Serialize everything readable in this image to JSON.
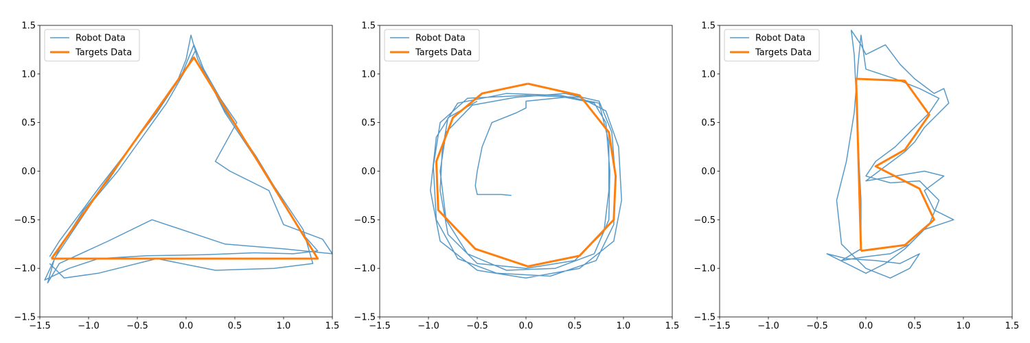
{
  "colors": {
    "robot": "#1f77b4",
    "targets": "#ff7f0e"
  },
  "chart_data": [
    {
      "type": "line",
      "title": "",
      "xlabel": "",
      "ylabel": "",
      "xlim": [
        -1.5,
        1.5
      ],
      "ylim": [
        -1.5,
        1.5
      ],
      "xticks": [
        "−1.5",
        "−1.0",
        "−0.5",
        "0.0",
        "0.5",
        "1.0",
        "1.5"
      ],
      "yticks": [
        "−1.5",
        "−1.0",
        "−0.5",
        "0.0",
        "0.5",
        "1.0",
        "1.5"
      ],
      "grid": false,
      "legend_placement": "top-left",
      "series": [
        {
          "name": "Robot Data",
          "color": "#1f77b4",
          "points": [
            [
              -1.4,
              -0.88
            ],
            [
              -1.3,
              -0.72
            ],
            [
              -1.1,
              -0.45
            ],
            [
              -0.9,
              -0.18
            ],
            [
              -0.7,
              0.08
            ],
            [
              -0.5,
              0.34
            ],
            [
              -0.3,
              0.62
            ],
            [
              -0.1,
              0.9
            ],
            [
              0.0,
              1.15
            ],
            [
              0.05,
              1.4
            ],
            [
              0.12,
              1.15
            ],
            [
              0.22,
              0.95
            ],
            [
              0.38,
              0.65
            ],
            [
              0.55,
              0.4
            ],
            [
              0.72,
              0.15
            ],
            [
              0.9,
              -0.15
            ],
            [
              1.05,
              -0.42
            ],
            [
              1.2,
              -0.65
            ],
            [
              1.35,
              -0.82
            ],
            [
              1.1,
              -0.85
            ],
            [
              0.7,
              -0.84
            ],
            [
              0.2,
              -0.86
            ],
            [
              -0.4,
              -0.87
            ],
            [
              -0.9,
              -0.9
            ],
            [
              -1.2,
              -1.0
            ],
            [
              -1.45,
              -1.12
            ],
            [
              -1.3,
              -0.8
            ],
            [
              -1.05,
              -0.4
            ],
            [
              -0.8,
              -0.1
            ],
            [
              -0.55,
              0.28
            ],
            [
              -0.3,
              0.6
            ],
            [
              -0.05,
              0.98
            ],
            [
              0.08,
              1.3
            ],
            [
              0.18,
              1.05
            ],
            [
              0.35,
              0.75
            ],
            [
              0.52,
              0.5
            ],
            [
              0.3,
              0.1
            ],
            [
              0.45,
              0.0
            ],
            [
              0.85,
              -0.2
            ],
            [
              1.0,
              -0.55
            ],
            [
              1.4,
              -0.7
            ],
            [
              1.5,
              -0.85
            ],
            [
              1.0,
              -0.8
            ],
            [
              0.4,
              -0.75
            ],
            [
              -0.35,
              -0.5
            ],
            [
              -0.8,
              -0.72
            ],
            [
              -1.3,
              -0.95
            ],
            [
              -1.42,
              -1.15
            ],
            [
              -1.35,
              -0.9
            ],
            [
              -1.15,
              -0.6
            ],
            [
              -0.95,
              -0.3
            ],
            [
              -0.7,
              0.0
            ],
            [
              -0.45,
              0.35
            ],
            [
              -0.2,
              0.7
            ],
            [
              0.0,
              1.05
            ],
            [
              0.1,
              1.25
            ],
            [
              0.2,
              1.0
            ],
            [
              0.4,
              0.6
            ],
            [
              0.6,
              0.3
            ],
            [
              0.8,
              0.0
            ],
            [
              1.0,
              -0.3
            ],
            [
              1.2,
              -0.6
            ],
            [
              1.3,
              -0.95
            ],
            [
              0.9,
              -1.0
            ],
            [
              0.3,
              -1.02
            ],
            [
              -0.3,
              -0.9
            ],
            [
              -0.9,
              -1.05
            ],
            [
              -1.25,
              -1.1
            ],
            [
              -1.4,
              -0.95
            ]
          ]
        },
        {
          "name": "Targets Data",
          "color": "#ff7f0e",
          "points": [
            [
              -1.38,
              -0.9
            ],
            [
              0.08,
              1.17
            ],
            [
              1.35,
              -0.9
            ],
            [
              -1.38,
              -0.9
            ]
          ]
        }
      ]
    },
    {
      "type": "line",
      "title": "",
      "xlabel": "",
      "ylabel": "",
      "xlim": [
        -1.5,
        1.5
      ],
      "ylim": [
        -1.5,
        1.5
      ],
      "xticks": [
        "−1.5",
        "−1.0",
        "−0.5",
        "0.0",
        "0.5",
        "1.0",
        "1.5"
      ],
      "yticks": [
        "−1.5",
        "−1.0",
        "−0.5",
        "0.0",
        "0.5",
        "1.0",
        "1.5"
      ],
      "grid": false,
      "legend_placement": "top-left",
      "series": [
        {
          "name": "Robot Data",
          "color": "#1f77b4",
          "points": [
            [
              -0.15,
              -0.25
            ],
            [
              -0.25,
              -0.24
            ],
            [
              -0.42,
              -0.24
            ],
            [
              -0.5,
              -0.24
            ],
            [
              -0.52,
              -0.15
            ],
            [
              -0.5,
              0.0
            ],
            [
              -0.45,
              0.25
            ],
            [
              -0.35,
              0.5
            ],
            [
              -0.1,
              0.6
            ],
            [
              0.0,
              0.65
            ],
            [
              0.0,
              0.72
            ],
            [
              0.4,
              0.76
            ],
            [
              0.7,
              0.7
            ],
            [
              0.82,
              0.5
            ],
            [
              0.86,
              0.0
            ],
            [
              0.85,
              -0.5
            ],
            [
              0.7,
              -0.85
            ],
            [
              0.3,
              -1.0
            ],
            [
              -0.2,
              -1.02
            ],
            [
              -0.6,
              -0.85
            ],
            [
              -0.82,
              -0.5
            ],
            [
              -0.88,
              0.0
            ],
            [
              -0.82,
              0.4
            ],
            [
              -0.55,
              0.68
            ],
            [
              -0.1,
              0.76
            ],
            [
              0.4,
              0.8
            ],
            [
              0.75,
              0.72
            ],
            [
              0.88,
              0.4
            ],
            [
              0.92,
              -0.1
            ],
            [
              0.9,
              -0.55
            ],
            [
              0.72,
              -0.92
            ],
            [
              0.25,
              -1.08
            ],
            [
              -0.3,
              -1.05
            ],
            [
              -0.7,
              -0.9
            ],
            [
              -0.92,
              -0.5
            ],
            [
              -0.95,
              0.05
            ],
            [
              -0.88,
              0.5
            ],
            [
              -0.6,
              0.75
            ],
            [
              0.0,
              0.78
            ],
            [
              0.55,
              0.76
            ],
            [
              0.82,
              0.62
            ],
            [
              0.95,
              0.25
            ],
            [
              0.98,
              -0.3
            ],
            [
              0.9,
              -0.72
            ],
            [
              0.55,
              -1.0
            ],
            [
              0.0,
              -1.1
            ],
            [
              -0.5,
              -1.02
            ],
            [
              -0.88,
              -0.72
            ],
            [
              -0.98,
              -0.2
            ],
            [
              -0.92,
              0.35
            ],
            [
              -0.7,
              0.7
            ],
            [
              -0.2,
              0.8
            ],
            [
              0.35,
              0.78
            ],
            [
              0.75,
              0.7
            ],
            [
              0.85,
              0.3
            ],
            [
              0.85,
              -0.2
            ],
            [
              0.8,
              -0.62
            ],
            [
              0.5,
              -0.92
            ],
            [
              0.0,
              -1.0
            ],
            [
              -0.5,
              -0.95
            ],
            [
              -0.8,
              -0.65
            ],
            [
              -0.88,
              -0.2
            ],
            [
              -0.86,
              0.2
            ],
            [
              -0.8,
              0.55
            ],
            [
              -0.5,
              0.72
            ]
          ]
        },
        {
          "name": "Targets Data",
          "color": "#ff7f0e",
          "points": [
            [
              0.02,
              0.9
            ],
            [
              0.55,
              0.78
            ],
            [
              0.85,
              0.4
            ],
            [
              0.92,
              -0.05
            ],
            [
              0.9,
              -0.5
            ],
            [
              0.55,
              -0.87
            ],
            [
              0.02,
              -0.98
            ],
            [
              -0.52,
              -0.8
            ],
            [
              -0.9,
              -0.4
            ],
            [
              -0.92,
              0.1
            ],
            [
              -0.75,
              0.55
            ],
            [
              -0.45,
              0.8
            ],
            [
              0.02,
              0.9
            ]
          ]
        }
      ]
    },
    {
      "type": "line",
      "title": "",
      "xlabel": "",
      "ylabel": "",
      "xlim": [
        -1.5,
        1.5
      ],
      "ylim": [
        -1.5,
        1.5
      ],
      "xticks": [
        "−1.5",
        "−1.0",
        "−0.5",
        "0.0",
        "0.5",
        "1.0",
        "1.5"
      ],
      "yticks": [
        "−1.5",
        "−1.0",
        "−0.5",
        "0.0",
        "0.5",
        "1.0",
        "1.5"
      ],
      "grid": false,
      "legend_placement": "top-left",
      "series": [
        {
          "name": "Robot Data",
          "color": "#1f77b4",
          "points": [
            [
              -0.05,
              -0.8
            ],
            [
              -0.05,
              -0.3
            ],
            [
              -0.08,
              0.3
            ],
            [
              -0.1,
              0.8
            ],
            [
              -0.12,
              1.2
            ],
            [
              -0.15,
              1.45
            ],
            [
              -0.05,
              1.3
            ],
            [
              0.0,
              1.2
            ],
            [
              0.2,
              1.3
            ],
            [
              0.35,
              1.1
            ],
            [
              0.5,
              0.95
            ],
            [
              0.7,
              0.8
            ],
            [
              0.8,
              0.85
            ],
            [
              0.85,
              0.7
            ],
            [
              0.7,
              0.55
            ],
            [
              0.6,
              0.45
            ],
            [
              0.5,
              0.3
            ],
            [
              0.4,
              0.2
            ],
            [
              0.2,
              0.05
            ],
            [
              0.0,
              -0.1
            ],
            [
              0.3,
              -0.05
            ],
            [
              0.6,
              0.0
            ],
            [
              0.8,
              -0.05
            ],
            [
              0.6,
              -0.2
            ],
            [
              0.7,
              -0.4
            ],
            [
              0.9,
              -0.5
            ],
            [
              0.6,
              -0.6
            ],
            [
              0.4,
              -0.8
            ],
            [
              0.2,
              -0.95
            ],
            [
              0.0,
              -1.05
            ],
            [
              -0.2,
              -0.95
            ],
            [
              -0.4,
              -0.85
            ],
            [
              -0.2,
              -0.9
            ],
            [
              0.1,
              -0.92
            ],
            [
              0.35,
              -0.95
            ],
            [
              0.55,
              -0.85
            ],
            [
              0.45,
              -1.0
            ],
            [
              0.25,
              -1.1
            ],
            [
              0.0,
              -1.0
            ],
            [
              -0.25,
              -0.75
            ],
            [
              -0.3,
              -0.3
            ],
            [
              -0.2,
              0.1
            ],
            [
              -0.12,
              0.6
            ],
            [
              -0.08,
              1.1
            ],
            [
              -0.05,
              1.4
            ],
            [
              0.0,
              1.05
            ],
            [
              0.3,
              0.95
            ],
            [
              0.55,
              0.85
            ],
            [
              0.75,
              0.75
            ],
            [
              0.65,
              0.6
            ],
            [
              0.45,
              0.4
            ],
            [
              0.3,
              0.25
            ],
            [
              0.1,
              0.1
            ],
            [
              0.0,
              -0.05
            ],
            [
              0.25,
              -0.12
            ],
            [
              0.55,
              -0.1
            ],
            [
              0.75,
              -0.3
            ],
            [
              0.65,
              -0.55
            ],
            [
              0.45,
              -0.75
            ],
            [
              0.25,
              -0.85
            ],
            [
              0.0,
              -0.88
            ],
            [
              -0.25,
              -0.92
            ],
            [
              -0.05,
              -0.8
            ]
          ]
        },
        {
          "name": "Targets Data",
          "color": "#ff7f0e",
          "points": [
            [
              -0.05,
              -0.82
            ],
            [
              -0.1,
              0.95
            ],
            [
              0.4,
              0.93
            ],
            [
              0.65,
              0.58
            ],
            [
              0.4,
              0.22
            ],
            [
              0.1,
              0.05
            ],
            [
              0.55,
              -0.18
            ],
            [
              0.7,
              -0.5
            ],
            [
              0.4,
              -0.76
            ],
            [
              -0.05,
              -0.82
            ]
          ]
        }
      ]
    }
  ]
}
